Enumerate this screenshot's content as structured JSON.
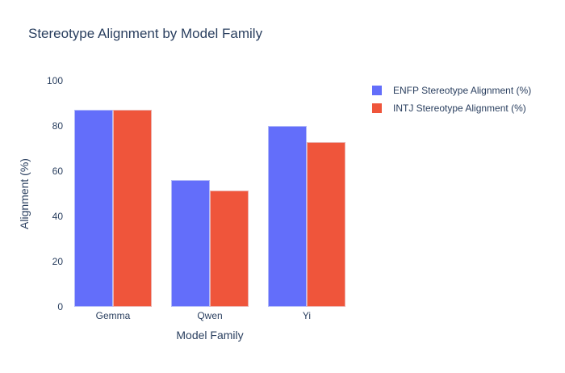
{
  "chart_data": {
    "type": "bar",
    "title": "Stereotype Alignment by Model Family",
    "xlabel": "Model Family",
    "ylabel": "Alignment (%)",
    "categories": [
      "Gemma",
      "Qwen",
      "Yi"
    ],
    "series": [
      {
        "name": "ENFP Stereotype Alignment (%)",
        "color": "#636EFA",
        "values": [
          87,
          56,
          80
        ]
      },
      {
        "name": "INTJ Stereotype Alignment (%)",
        "color": "#EF553B",
        "values": [
          87,
          51.5,
          73
        ]
      }
    ],
    "ylim": [
      0,
      100
    ],
    "yticks": [
      0,
      20,
      40,
      60,
      80,
      100
    ],
    "grid": false,
    "legend_position": "right",
    "text_color": "#2a3f5f",
    "background": "#ffffff"
  }
}
